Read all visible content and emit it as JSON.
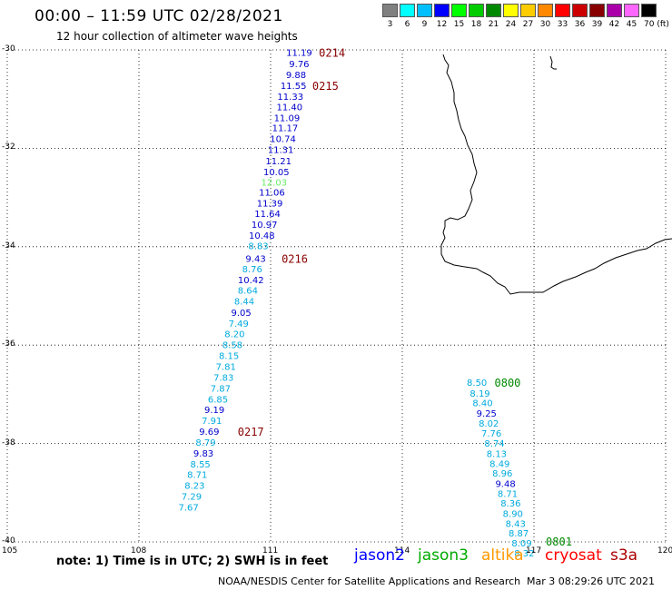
{
  "header": {
    "title": "00:00 – 11:59 UTC 02/28/2021",
    "subtitle": "12 hour collection of altimeter wave heights"
  },
  "legend": {
    "labels": [
      "3",
      "6",
      "9",
      "12",
      "15",
      "18",
      "21",
      "24",
      "27",
      "30",
      "33",
      "36",
      "39",
      "42",
      "45",
      "70 (ft)"
    ],
    "colors": [
      "#808080",
      "#00ffff",
      "#00bfff",
      "#0000ff",
      "#00ff00",
      "#00cc00",
      "#008800",
      "#ffff00",
      "#ffcc00",
      "#ff8800",
      "#ff0000",
      "#cc0000",
      "#880000",
      "#aa00aa",
      "#ff66ff",
      "#000000"
    ]
  },
  "map": {
    "lon_range": [
      105,
      120
    ],
    "lat_range": [
      -40,
      -30
    ],
    "lat_ticks": [
      "-30",
      "-32",
      "-34",
      "-36",
      "-38",
      "-40"
    ],
    "lon_ticks": [
      "105",
      "108",
      "111",
      "114",
      "117",
      "120"
    ],
    "wave_heights": [
      {
        "lon": 111.65,
        "lat": -30.05,
        "v": "11.19",
        "c": "#0000cc"
      },
      {
        "lon": 111.65,
        "lat": -30.28,
        "v": "9.76",
        "c": "#0000cc"
      },
      {
        "lon": 111.58,
        "lat": -30.5,
        "v": "9.88",
        "c": "#0000cc"
      },
      {
        "lon": 111.52,
        "lat": -30.72,
        "v": "11.55",
        "c": "#0000cc"
      },
      {
        "lon": 111.45,
        "lat": -30.94,
        "v": "11.33",
        "c": "#0000cc"
      },
      {
        "lon": 111.43,
        "lat": -31.15,
        "v": "11.40",
        "c": "#0000cc"
      },
      {
        "lon": 111.37,
        "lat": -31.37,
        "v": "11.09",
        "c": "#0000cc"
      },
      {
        "lon": 111.33,
        "lat": -31.58,
        "v": "11.17",
        "c": "#0000cc"
      },
      {
        "lon": 111.28,
        "lat": -31.8,
        "v": "10.74",
        "c": "#0000cc"
      },
      {
        "lon": 111.23,
        "lat": -32.02,
        "v": "11.31",
        "c": "#0000cc"
      },
      {
        "lon": 111.18,
        "lat": -32.25,
        "v": "11.21",
        "c": "#0000cc"
      },
      {
        "lon": 111.13,
        "lat": -32.47,
        "v": "10.05",
        "c": "#0000cc"
      },
      {
        "lon": 111.08,
        "lat": -32.68,
        "v": "12.03",
        "c": "#66ee66"
      },
      {
        "lon": 111.03,
        "lat": -32.89,
        "v": "11.06",
        "c": "#0000cc"
      },
      {
        "lon": 110.98,
        "lat": -33.11,
        "v": "11.39",
        "c": "#0000cc"
      },
      {
        "lon": 110.93,
        "lat": -33.32,
        "v": "11.64",
        "c": "#0000cc"
      },
      {
        "lon": 110.86,
        "lat": -33.54,
        "v": "10.97",
        "c": "#0000cc"
      },
      {
        "lon": 110.8,
        "lat": -33.76,
        "v": "10.48",
        "c": "#0000cc"
      },
      {
        "lon": 110.72,
        "lat": -33.98,
        "v": "8.83",
        "c": "#00aadd"
      },
      {
        "lon": 110.66,
        "lat": -34.23,
        "v": "9.43",
        "c": "#0000cc"
      },
      {
        "lon": 110.58,
        "lat": -34.45,
        "v": "8.76",
        "c": "#00aadd"
      },
      {
        "lon": 110.55,
        "lat": -34.67,
        "v": "10.42",
        "c": "#0000cc"
      },
      {
        "lon": 110.48,
        "lat": -34.88,
        "v": "8.64",
        "c": "#00aadd"
      },
      {
        "lon": 110.4,
        "lat": -35.1,
        "v": "8.44",
        "c": "#00aadd"
      },
      {
        "lon": 110.33,
        "lat": -35.33,
        "v": "9.05",
        "c": "#0000cc"
      },
      {
        "lon": 110.27,
        "lat": -35.55,
        "v": "7.49",
        "c": "#00aadd"
      },
      {
        "lon": 110.18,
        "lat": -35.77,
        "v": "8.20",
        "c": "#00aadd"
      },
      {
        "lon": 110.13,
        "lat": -35.99,
        "v": "8.58",
        "c": "#00aadd"
      },
      {
        "lon": 110.05,
        "lat": -36.21,
        "v": "8.15",
        "c": "#00aadd"
      },
      {
        "lon": 109.98,
        "lat": -36.43,
        "v": "7.81",
        "c": "#00aadd"
      },
      {
        "lon": 109.93,
        "lat": -36.65,
        "v": "7.83",
        "c": "#00aadd"
      },
      {
        "lon": 109.86,
        "lat": -36.87,
        "v": "7.87",
        "c": "#00aadd"
      },
      {
        "lon": 109.8,
        "lat": -37.09,
        "v": "6.85",
        "c": "#00aadd"
      },
      {
        "lon": 109.72,
        "lat": -37.31,
        "v": "9.19",
        "c": "#0000cc"
      },
      {
        "lon": 109.66,
        "lat": -37.53,
        "v": "7.91",
        "c": "#00aadd"
      },
      {
        "lon": 109.6,
        "lat": -37.75,
        "v": "9.69",
        "c": "#0000cc"
      },
      {
        "lon": 109.52,
        "lat": -37.97,
        "v": "8.79",
        "c": "#00aadd"
      },
      {
        "lon": 109.47,
        "lat": -38.19,
        "v": "9.83",
        "c": "#0000cc"
      },
      {
        "lon": 109.4,
        "lat": -38.41,
        "v": "8.55",
        "c": "#00aadd"
      },
      {
        "lon": 109.33,
        "lat": -38.63,
        "v": "8.71",
        "c": "#00aadd"
      },
      {
        "lon": 109.27,
        "lat": -38.85,
        "v": "8.23",
        "c": "#00aadd"
      },
      {
        "lon": 109.2,
        "lat": -39.07,
        "v": "7.29",
        "c": "#00aadd"
      },
      {
        "lon": 109.13,
        "lat": -39.29,
        "v": "7.67",
        "c": "#00aadd"
      },
      {
        "lon": 115.7,
        "lat": -36.75,
        "v": "8.50",
        "c": "#00aadd"
      },
      {
        "lon": 115.77,
        "lat": -36.97,
        "v": "8.19",
        "c": "#00aadd"
      },
      {
        "lon": 115.83,
        "lat": -37.17,
        "v": "8.40",
        "c": "#00aadd"
      },
      {
        "lon": 115.92,
        "lat": -37.38,
        "v": "9.25",
        "c": "#0000cc"
      },
      {
        "lon": 115.97,
        "lat": -37.58,
        "v": "8.02",
        "c": "#00aadd"
      },
      {
        "lon": 116.03,
        "lat": -37.79,
        "v": "7.76",
        "c": "#00aadd"
      },
      {
        "lon": 116.1,
        "lat": -37.99,
        "v": "8.74",
        "c": "#00aadd"
      },
      {
        "lon": 116.15,
        "lat": -38.2,
        "v": "8.13",
        "c": "#00aadd"
      },
      {
        "lon": 116.22,
        "lat": -38.4,
        "v": "8.49",
        "c": "#00aadd"
      },
      {
        "lon": 116.28,
        "lat": -38.6,
        "v": "8.96",
        "c": "#00aadd"
      },
      {
        "lon": 116.35,
        "lat": -38.81,
        "v": "9.48",
        "c": "#0000cc"
      },
      {
        "lon": 116.4,
        "lat": -39.01,
        "v": "8.71",
        "c": "#00aadd"
      },
      {
        "lon": 116.47,
        "lat": -39.21,
        "v": "8.36",
        "c": "#00aadd"
      },
      {
        "lon": 116.52,
        "lat": -39.42,
        "v": "8.90",
        "c": "#00aadd"
      },
      {
        "lon": 116.58,
        "lat": -39.62,
        "v": "8.43",
        "c": "#00aadd"
      },
      {
        "lon": 116.65,
        "lat": -39.82,
        "v": "8.87",
        "c": "#00aadd"
      },
      {
        "lon": 116.72,
        "lat": -40.02,
        "v": "8.09",
        "c": "#00aadd"
      },
      {
        "lon": 116.78,
        "lat": -40.22,
        "v": "8.32",
        "c": "#00aadd"
      }
    ],
    "time_labels": [
      {
        "lon": 112.1,
        "lat": -30.05,
        "t": "0214",
        "c": "#880000"
      },
      {
        "lon": 111.95,
        "lat": -30.72,
        "t": "0215",
        "c": "#880000"
      },
      {
        "lon": 111.25,
        "lat": -34.23,
        "t": "0216",
        "c": "#880000"
      },
      {
        "lon": 110.25,
        "lat": -37.75,
        "t": "0217",
        "c": "#880000"
      },
      {
        "lon": 116.1,
        "lat": -36.75,
        "t": "0800",
        "c": "#008800"
      },
      {
        "lon": 117.27,
        "lat": -39.98,
        "t": "0801",
        "c": "#008800"
      }
    ]
  },
  "footer": {
    "note": "note:  1) Time is in UTC;  2) SWH is in feet",
    "satellites": [
      {
        "name": "jason2",
        "color": "#0000ff"
      },
      {
        "name": "jason3",
        "color": "#00aa00"
      },
      {
        "name": "altika",
        "color": "#ff9900"
      },
      {
        "name": "cryosat",
        "color": "#ff0000"
      },
      {
        "name": "s3a",
        "color": "#aa0000"
      }
    ],
    "credit": "NOAA/NESDIS Center for Satellite Applications and Research",
    "timestamp": "Mar  3 08:29:26 UTC 2021"
  }
}
